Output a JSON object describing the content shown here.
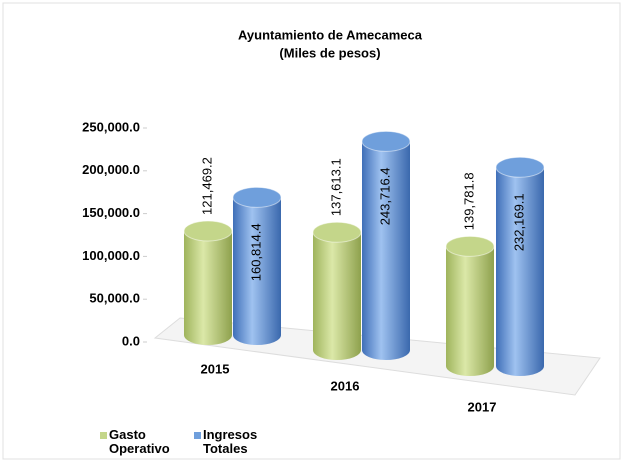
{
  "chart_data": {
    "type": "cylinder_bar",
    "title": "Ayuntamiento de Amecameca",
    "subtitle": "(Miles de pesos)",
    "categories": [
      "2015",
      "2016",
      "2017"
    ],
    "series": [
      {
        "name": "Gasto Operativo",
        "color": "#c4d68a",
        "values": [
          121469.2,
          137613.1,
          139781.8
        ],
        "value_labels": [
          "121,469.2",
          "137,613.1",
          "139,781.8"
        ]
      },
      {
        "name": "Ingresos Totales",
        "color": "#6f9fdc",
        "values": [
          160814.4,
          243716.4,
          232169.1
        ],
        "value_labels": [
          "160,814.4",
          "243,716.4",
          "232,169.1"
        ]
      }
    ],
    "ylim": [
      0,
      250000
    ],
    "yticks": [
      {
        "value": 0,
        "label": "0.0"
      },
      {
        "value": 50000,
        "label": "50,000.0"
      },
      {
        "value": 100000,
        "label": "100,000.0"
      },
      {
        "value": 150000,
        "label": "150,000.0"
      },
      {
        "value": 200000,
        "label": "200,000.0"
      },
      {
        "value": 250000,
        "label": "250,000.0"
      }
    ],
    "legend": "bottom-left"
  }
}
